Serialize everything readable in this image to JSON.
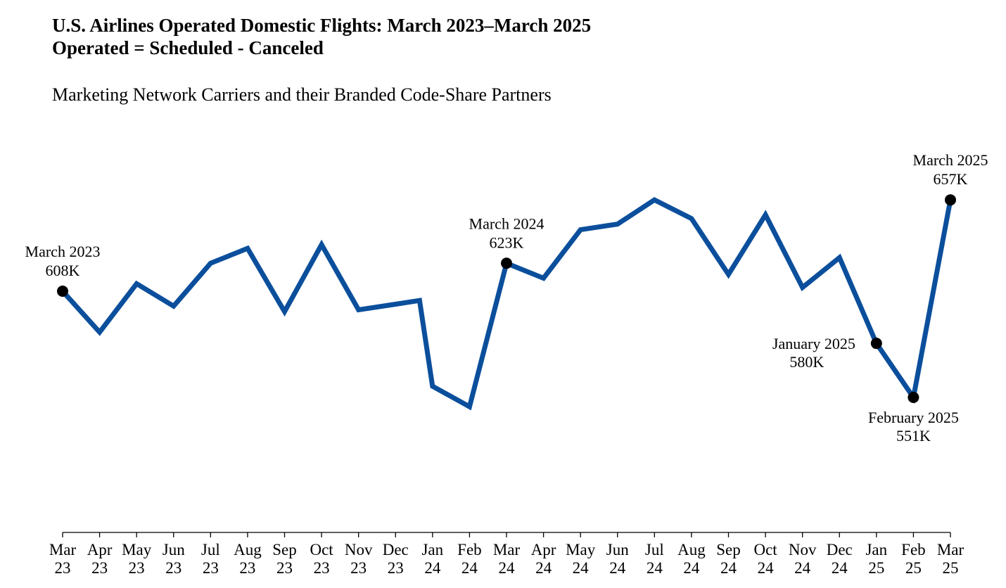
{
  "header": {
    "title_line1": "U.S. Airlines Operated Domestic Flights: March 2023–March 2025",
    "title_line2": "Operated = Scheduled - Canceled",
    "subtitle": "Marketing Network Carriers and their Branded Code-Share Partners"
  },
  "colors": {
    "line": "#0b4f9c",
    "marker": "#000000",
    "axis": "#000000"
  },
  "chart_data": {
    "type": "line",
    "title": "U.S. Airlines Operated Domestic Flights: March 2023–March 2025",
    "subtitle": "Marketing Network Carriers and their Branded Code-Share Partners",
    "unit": "K",
    "grid": false,
    "categories": [
      "Mar 23",
      "Apr 23",
      "May 23",
      "Jun 23",
      "Jul 23",
      "Aug 23",
      "Sep 23",
      "Oct 23",
      "Nov 23",
      "Dec 23",
      "Jan 24",
      "Feb 24",
      "Mar 24",
      "Apr 24",
      "May 24",
      "Jun 24",
      "Jul 24",
      "Aug 24",
      "Sep 24",
      "Oct 24",
      "Nov 24",
      "Dec 24",
      "Jan 25",
      "Feb 25",
      "Mar 25"
    ],
    "tick_labels": [
      [
        "Mar",
        "23"
      ],
      [
        "Apr",
        "23"
      ],
      [
        "May",
        "23"
      ],
      [
        "Jun",
        "23"
      ],
      [
        "Jul",
        "23"
      ],
      [
        "Aug",
        "23"
      ],
      [
        "Sep",
        "23"
      ],
      [
        "Oct",
        "23"
      ],
      [
        "Nov",
        "23"
      ],
      [
        "Dec",
        "23"
      ],
      [
        "Jan",
        "24"
      ],
      [
        "Feb",
        "24"
      ],
      [
        "Mar",
        "24"
      ],
      [
        "Apr",
        "24"
      ],
      [
        "May",
        "24"
      ],
      [
        "Jun",
        "24"
      ],
      [
        "Jul",
        "24"
      ],
      [
        "Aug",
        "24"
      ],
      [
        "Sep",
        "24"
      ],
      [
        "Oct",
        "24"
      ],
      [
        "Nov",
        "24"
      ],
      [
        "Dec",
        "24"
      ],
      [
        "Jan",
        "25"
      ],
      [
        "Feb",
        "25"
      ],
      [
        "Mar",
        "25"
      ]
    ],
    "points": [
      {
        "x": 0,
        "y": 608
      },
      {
        "x": 1,
        "y": 586
      },
      {
        "x": 2,
        "y": 612
      },
      {
        "x": 3,
        "y": 600
      },
      {
        "x": 4,
        "y": 623
      },
      {
        "x": 5,
        "y": 631
      },
      {
        "x": 6,
        "y": 597
      },
      {
        "x": 7,
        "y": 633
      },
      {
        "x": 8,
        "y": 598
      },
      {
        "x": 9,
        "y": 601
      },
      {
        "x": 9.65,
        "y": 603
      },
      {
        "x": 10,
        "y": 557
      },
      {
        "x": 11,
        "y": 546
      },
      {
        "x": 12,
        "y": 623
      },
      {
        "x": 13,
        "y": 615
      },
      {
        "x": 14,
        "y": 641
      },
      {
        "x": 15,
        "y": 644
      },
      {
        "x": 16,
        "y": 657
      },
      {
        "x": 17,
        "y": 647
      },
      {
        "x": 18,
        "y": 617
      },
      {
        "x": 19,
        "y": 649
      },
      {
        "x": 20,
        "y": 610
      },
      {
        "x": 21,
        "y": 626
      },
      {
        "x": 22,
        "y": 580
      },
      {
        "x": 23,
        "y": 551
      },
      {
        "x": 24,
        "y": 657
      }
    ],
    "ylim": [
      470,
      700
    ],
    "annotations": [
      {
        "x": 0,
        "y": 608,
        "label": "March 2023",
        "value": "608K",
        "placement": "above"
      },
      {
        "x": 12,
        "y": 623,
        "label": "March 2024",
        "value": "623K",
        "placement": "above"
      },
      {
        "x": 22,
        "y": 580,
        "label": "January 2025",
        "value": "580K",
        "placement": "left"
      },
      {
        "x": 23,
        "y": 551,
        "label": "February 2025",
        "value": "551K",
        "placement": "below"
      },
      {
        "x": 24,
        "y": 657,
        "label": "March 2025",
        "value": "657K",
        "placement": "above"
      }
    ]
  }
}
